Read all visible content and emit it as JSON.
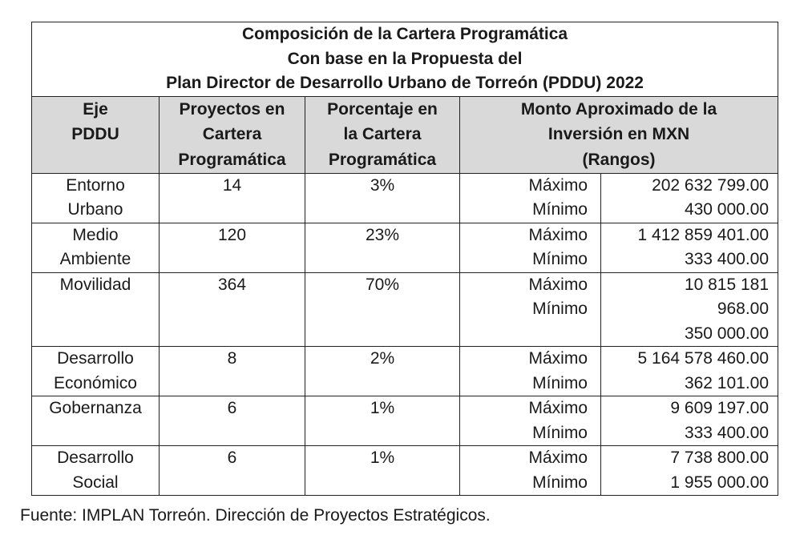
{
  "title": {
    "line1": "Composición de la Cartera Programática",
    "line2": "Con base en la Propuesta del",
    "line3": "Plan Director de Desarrollo Urbano de Torreón (PDDU) 2022"
  },
  "headers": {
    "eje": [
      "Eje",
      "PDDU"
    ],
    "proyectos": [
      "Proyectos en",
      "Cartera",
      "Programática"
    ],
    "porcentaje": [
      "Porcentaje en",
      "la Cartera",
      "Programática"
    ],
    "monto": [
      "Monto Aproximado de la",
      "Inversión en MXN",
      "(Rangos)"
    ]
  },
  "rows": [
    {
      "eje": [
        "Entorno",
        "Urbano"
      ],
      "proyectos": "14",
      "porcentaje": "3%",
      "range_labels": [
        "Máximo",
        "Mínimo"
      ],
      "range_values": [
        "202 632 799.00",
        "430 000.00"
      ]
    },
    {
      "eje": [
        "Medio",
        "Ambiente"
      ],
      "proyectos": "120",
      "porcentaje": "23%",
      "range_labels": [
        "Máximo",
        "Mínimo"
      ],
      "range_values": [
        "1 412 859 401.00",
        "333 400.00"
      ]
    },
    {
      "eje": [
        "Movilidad"
      ],
      "proyectos": "364",
      "porcentaje": "70%",
      "range_labels": [
        "Máximo",
        "Mínimo"
      ],
      "range_values": [
        "10 815 181",
        "968.00",
        "350 000.00"
      ]
    },
    {
      "eje": [
        "Desarrollo",
        "Económico"
      ],
      "proyectos": "8",
      "porcentaje": "2%",
      "range_labels": [
        "Máximo",
        "Mínimo"
      ],
      "range_values": [
        "5 164 578 460.00",
        "362 101.00"
      ]
    },
    {
      "eje": [
        "Gobernanza"
      ],
      "proyectos": "6",
      "porcentaje": "1%",
      "range_labels": [
        "Máximo",
        "Mínimo"
      ],
      "range_values": [
        "9 609 197.00",
        "333 400.00"
      ]
    },
    {
      "eje": [
        "Desarrollo",
        "Social"
      ],
      "proyectos": "6",
      "porcentaje": "1%",
      "range_labels": [
        "Máximo",
        "Mínimo"
      ],
      "range_values": [
        "7 738 800.00",
        "1 955 000.00"
      ]
    }
  ],
  "source": "Fuente: IMPLAN Torreón. Dirección de Proyectos Estratégicos."
}
